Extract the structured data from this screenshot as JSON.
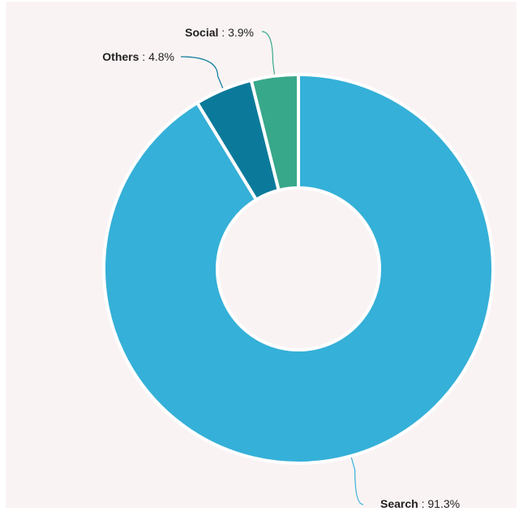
{
  "chart_data": {
    "type": "pie",
    "style": "donut",
    "title": "",
    "slices": [
      {
        "name": "Search",
        "value": 91.3,
        "label": "91.3%",
        "color": "#35b0d8"
      },
      {
        "name": "Others",
        "value": 4.8,
        "label": "4.8%",
        "color": "#0b7a9a"
      },
      {
        "name": "Social",
        "value": 3.9,
        "label": "3.9%",
        "color": "#38a88a"
      }
    ],
    "start_angle_deg": 0,
    "direction": "clockwise",
    "separator_color": "#ffffff",
    "background": "#faf3f4",
    "legend": "none"
  }
}
